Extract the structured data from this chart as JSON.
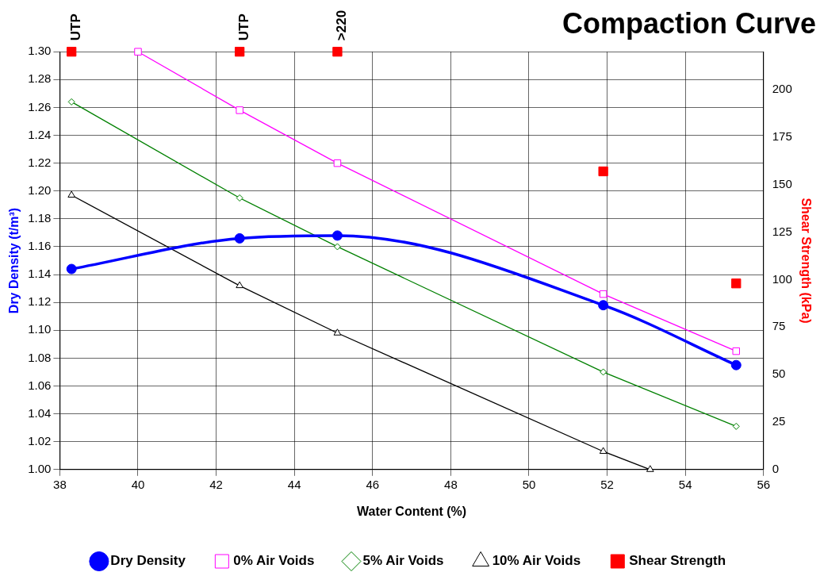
{
  "chart_data": {
    "type": "line",
    "title": "Compaction Curve",
    "xlabel": "Water Content (%)",
    "ylabel": "Dry Density (t/m³)",
    "y2label": "Shear Strength (kPa)",
    "xlim": [
      38,
      56
    ],
    "xticks": [
      38,
      40,
      42,
      44,
      46,
      48,
      50,
      52,
      54,
      56
    ],
    "ylim": [
      1.0,
      1.3
    ],
    "yticks": [
      {
        "value": 1,
        "label": "1.00"
      },
      1.02,
      1.04,
      1.06,
      1.08,
      {
        "value": 1.1,
        "label": "1.10"
      },
      1.12,
      1.14,
      1.16,
      1.18,
      {
        "value": 1.2,
        "label": "1.20"
      },
      1.22,
      1.24,
      1.26,
      1.28,
      {
        "value": 1.3,
        "label": "1.30"
      }
    ],
    "y2lim": [
      0,
      220
    ],
    "y2ticks": [
      0,
      25,
      50,
      75,
      100,
      125,
      150,
      175,
      200
    ],
    "grid": true,
    "legend": "bottom",
    "series": [
      {
        "name": "Dry Density",
        "color": "#0000ff",
        "marker": "circle",
        "x": [
          38.3,
          42.6,
          45.1,
          51.9,
          55.3
        ],
        "values": [
          1.144,
          1.166,
          1.168,
          1.118,
          1.075
        ]
      },
      {
        "name": "0% Air Voids",
        "color": "#ff00ff",
        "marker": "square",
        "x": [
          40.0,
          42.6,
          45.1,
          51.9,
          55.3
        ],
        "values": [
          1.3,
          1.258,
          1.22,
          1.126,
          1.085
        ]
      },
      {
        "name": "5% Air Voids",
        "color": "#008000",
        "marker": "diamond",
        "x": [
          38.3,
          42.6,
          45.1,
          51.9,
          55.3
        ],
        "values": [
          1.264,
          1.195,
          1.16,
          1.07,
          1.031
        ]
      },
      {
        "name": "10% Air Voids",
        "color": "#000000",
        "marker": "triangle",
        "x": [
          38.3,
          42.6,
          45.1,
          51.9,
          53.1
        ],
        "values": [
          1.197,
          1.132,
          1.098,
          1.013,
          1.0
        ]
      },
      {
        "name": "Shear Strength",
        "color": "#ff0000",
        "type": "scatter",
        "axis": "y2",
        "marker": "square",
        "x": [
          38.3,
          42.6,
          45.1,
          51.9,
          55.3
        ],
        "values": [
          220,
          220,
          220,
          157,
          98
        ]
      }
    ],
    "annotations": [
      {
        "text": "UTP",
        "x": 38.3,
        "y": 1.3
      },
      {
        "text": "UTP",
        "x": 42.6,
        "y": 1.3
      },
      {
        "text": ">220",
        "x": 45.1,
        "y": 1.3
      }
    ]
  }
}
